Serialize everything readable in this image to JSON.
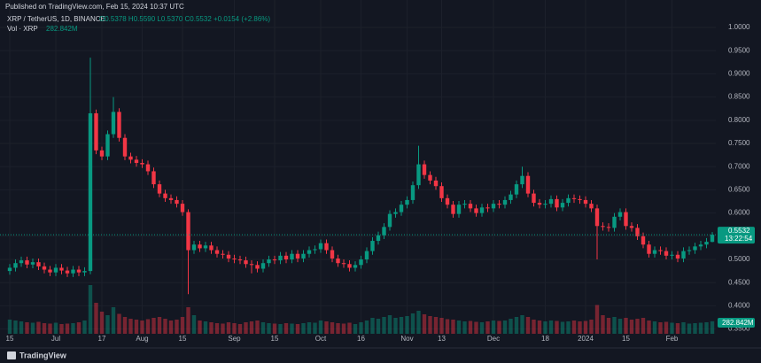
{
  "header": "Published on TradingView.com, Feb 15, 2024 10:37 UTC",
  "footer": "TradingView",
  "chart_data": {
    "type": "candlestick",
    "symbol": "XRP / TetherUS, 1D, BINANCE",
    "ohlc_text": "O0.5378 H0.5590 L0.5370 C0.5532 +0.0154 (+2.86%)",
    "volume_title": "Vol · XRP",
    "volume_text": "282.842M",
    "last_price_label": "0.5532",
    "countdown": "13:22:54",
    "up_color": "#089981",
    "down_color": "#f23645",
    "categories": [
      "15",
      null,
      null,
      null,
      null,
      null,
      null,
      null,
      "Jul",
      null,
      null,
      null,
      null,
      null,
      null,
      null,
      "17",
      null,
      null,
      null,
      null,
      null,
      null,
      "Aug",
      null,
      null,
      null,
      null,
      null,
      null,
      "15",
      null,
      null,
      null,
      null,
      null,
      null,
      null,
      null,
      "Sep",
      null,
      null,
      null,
      null,
      null,
      null,
      "15",
      null,
      null,
      null,
      null,
      null,
      null,
      null,
      "Oct",
      null,
      null,
      null,
      null,
      null,
      null,
      "16",
      null,
      null,
      null,
      null,
      null,
      null,
      null,
      "Nov",
      null,
      null,
      null,
      null,
      null,
      "13",
      null,
      null,
      null,
      null,
      null,
      null,
      null,
      null,
      "Dec",
      null,
      null,
      null,
      null,
      null,
      null,
      null,
      null,
      "18",
      null,
      null,
      null,
      null,
      null,
      null,
      "2024",
      null,
      null,
      null,
      null,
      null,
      null,
      "15",
      null,
      null,
      null,
      null,
      null,
      null,
      null,
      "Feb",
      null,
      null,
      null,
      null,
      null,
      null,
      null
    ],
    "open": [
      0.475,
      0.482,
      0.492,
      0.498,
      0.489,
      0.494,
      0.485,
      0.478,
      0.472,
      0.482,
      0.476,
      0.47,
      0.478,
      0.472,
      0.475,
      0.815,
      0.735,
      0.722,
      0.77,
      0.818,
      0.762,
      0.722,
      0.715,
      0.708,
      0.705,
      0.69,
      0.662,
      0.642,
      0.632,
      0.628,
      0.62,
      0.602,
      0.52,
      0.532,
      0.524,
      0.53,
      0.52,
      0.512,
      0.51,
      0.502,
      0.5,
      0.498,
      0.49,
      0.488,
      0.48,
      0.492,
      0.5,
      0.498,
      0.508,
      0.5,
      0.512,
      0.502,
      0.512,
      0.52,
      0.522,
      0.535,
      0.52,
      0.502,
      0.492,
      0.49,
      0.482,
      0.488,
      0.5,
      0.518,
      0.54,
      0.552,
      0.57,
      0.598,
      0.602,
      0.618,
      0.628,
      0.66,
      0.705,
      0.682,
      0.67,
      0.658,
      0.632,
      0.618,
      0.598,
      0.618,
      0.62,
      0.61,
      0.6,
      0.612,
      0.61,
      0.62,
      0.618,
      0.628,
      0.64,
      0.662,
      0.68,
      0.642,
      0.622,
      0.618,
      0.62,
      0.63,
      0.612,
      0.622,
      0.632,
      0.63,
      0.628,
      0.62,
      0.61,
      0.572,
      0.57,
      0.568,
      0.592,
      0.602,
      0.572,
      0.568,
      0.55,
      0.532,
      0.512,
      0.52,
      0.518,
      0.508,
      0.51,
      0.502,
      0.518,
      0.52,
      0.528,
      0.532,
      0.5378
    ],
    "high": [
      0.49,
      0.5,
      0.506,
      0.506,
      0.502,
      0.502,
      0.493,
      0.486,
      0.49,
      0.49,
      0.484,
      0.486,
      0.486,
      0.483,
      0.935,
      0.823,
      0.743,
      0.778,
      0.85,
      0.826,
      0.77,
      0.73,
      0.723,
      0.716,
      0.713,
      0.698,
      0.67,
      0.65,
      0.64,
      0.636,
      0.628,
      0.608,
      0.54,
      0.54,
      0.538,
      0.538,
      0.528,
      0.52,
      0.518,
      0.51,
      0.508,
      0.506,
      0.498,
      0.496,
      0.5,
      0.508,
      0.508,
      0.516,
      0.516,
      0.52,
      0.52,
      0.52,
      0.528,
      0.53,
      0.543,
      0.543,
      0.528,
      0.51,
      0.5,
      0.498,
      0.496,
      0.508,
      0.526,
      0.548,
      0.56,
      0.578,
      0.606,
      0.61,
      0.626,
      0.636,
      0.668,
      0.745,
      0.713,
      0.69,
      0.678,
      0.666,
      0.64,
      0.626,
      0.626,
      0.628,
      0.628,
      0.618,
      0.62,
      0.62,
      0.628,
      0.628,
      0.636,
      0.648,
      0.67,
      0.7,
      0.688,
      0.65,
      0.63,
      0.628,
      0.638,
      0.638,
      0.63,
      0.64,
      0.64,
      0.638,
      0.636,
      0.628,
      0.618,
      0.58,
      0.578,
      0.6,
      0.61,
      0.61,
      0.58,
      0.576,
      0.558,
      0.54,
      0.528,
      0.528,
      0.526,
      0.518,
      0.518,
      0.526,
      0.528,
      0.536,
      0.54,
      0.546,
      0.559
    ],
    "low": [
      0.467,
      0.474,
      0.484,
      0.481,
      0.481,
      0.477,
      0.47,
      0.464,
      0.464,
      0.468,
      0.462,
      0.462,
      0.464,
      0.464,
      0.468,
      0.727,
      0.714,
      0.714,
      0.762,
      0.754,
      0.714,
      0.707,
      0.7,
      0.697,
      0.682,
      0.654,
      0.634,
      0.624,
      0.62,
      0.612,
      0.594,
      0.425,
      0.512,
      0.516,
      0.516,
      0.512,
      0.504,
      0.502,
      0.494,
      0.492,
      0.49,
      0.482,
      0.47,
      0.472,
      0.472,
      0.484,
      0.49,
      0.49,
      0.492,
      0.492,
      0.494,
      0.494,
      0.504,
      0.512,
      0.514,
      0.512,
      0.494,
      0.484,
      0.482,
      0.474,
      0.474,
      0.48,
      0.492,
      0.51,
      0.532,
      0.544,
      0.562,
      0.59,
      0.594,
      0.61,
      0.62,
      0.652,
      0.674,
      0.662,
      0.65,
      0.624,
      0.61,
      0.59,
      0.59,
      0.61,
      0.602,
      0.592,
      0.592,
      0.602,
      0.602,
      0.61,
      0.61,
      0.62,
      0.632,
      0.654,
      0.634,
      0.614,
      0.61,
      0.61,
      0.612,
      0.604,
      0.604,
      0.614,
      0.622,
      0.62,
      0.612,
      0.602,
      0.5,
      0.562,
      0.56,
      0.56,
      0.584,
      0.564,
      0.56,
      0.542,
      0.524,
      0.504,
      0.504,
      0.51,
      0.5,
      0.5,
      0.494,
      0.494,
      0.51,
      0.512,
      0.52,
      0.524,
      0.537
    ],
    "close": [
      0.482,
      0.492,
      0.498,
      0.489,
      0.494,
      0.485,
      0.478,
      0.472,
      0.482,
      0.476,
      0.47,
      0.478,
      0.472,
      0.475,
      0.815,
      0.735,
      0.722,
      0.77,
      0.818,
      0.762,
      0.722,
      0.715,
      0.708,
      0.705,
      0.69,
      0.662,
      0.642,
      0.632,
      0.628,
      0.62,
      0.602,
      0.52,
      0.532,
      0.524,
      0.53,
      0.52,
      0.512,
      0.51,
      0.502,
      0.5,
      0.498,
      0.49,
      0.488,
      0.48,
      0.492,
      0.5,
      0.498,
      0.508,
      0.5,
      0.512,
      0.502,
      0.512,
      0.52,
      0.522,
      0.535,
      0.52,
      0.502,
      0.492,
      0.49,
      0.482,
      0.488,
      0.5,
      0.518,
      0.54,
      0.552,
      0.57,
      0.598,
      0.602,
      0.618,
      0.628,
      0.66,
      0.705,
      0.682,
      0.67,
      0.658,
      0.632,
      0.618,
      0.598,
      0.618,
      0.62,
      0.61,
      0.6,
      0.612,
      0.61,
      0.62,
      0.618,
      0.628,
      0.64,
      0.662,
      0.68,
      0.642,
      0.622,
      0.618,
      0.62,
      0.63,
      0.612,
      0.622,
      0.632,
      0.63,
      0.628,
      0.62,
      0.61,
      0.572,
      0.57,
      0.568,
      0.592,
      0.602,
      0.572,
      0.568,
      0.55,
      0.532,
      0.512,
      0.52,
      0.518,
      0.508,
      0.51,
      0.502,
      0.518,
      0.52,
      0.528,
      0.532,
      0.538,
      0.5532
    ],
    "volume": [
      320,
      300,
      280,
      260,
      250,
      270,
      240,
      230,
      250,
      220,
      230,
      240,
      260,
      300,
      1100,
      700,
      500,
      420,
      600,
      450,
      380,
      340,
      320,
      300,
      330,
      360,
      380,
      340,
      300,
      320,
      380,
      600,
      420,
      300,
      280,
      260,
      240,
      230,
      260,
      240,
      220,
      260,
      280,
      300,
      260,
      240,
      230,
      220,
      240,
      230,
      220,
      240,
      260,
      250,
      300,
      280,
      260,
      240,
      230,
      250,
      220,
      260,
      300,
      360,
      340,
      380,
      420,
      360,
      380,
      400,
      460,
      520,
      440,
      400,
      380,
      360,
      330,
      320,
      300,
      280,
      290,
      270,
      260,
      280,
      300,
      290,
      300,
      340,
      380,
      420,
      380,
      320,
      300,
      280,
      300,
      290,
      270,
      280,
      300,
      280,
      290,
      320,
      650,
      420,
      360,
      380,
      340,
      360,
      320,
      340,
      360,
      300,
      280,
      260,
      270,
      250,
      240,
      260,
      230,
      240,
      250,
      260,
      282.842
    ],
    "ylim": [
      0.3397,
      1.0592
    ],
    "yticks": [
      {
        "value": 1,
        "label": "1.0000"
      },
      {
        "value": 0.95,
        "label": "0.9500"
      },
      {
        "value": 0.9,
        "label": "0.9000"
      },
      {
        "value": 0.85,
        "label": "0.8500"
      },
      {
        "value": 0.8,
        "label": "0.8000"
      },
      {
        "value": 0.75,
        "label": "0.7500"
      },
      {
        "value": 0.7,
        "label": "0.7000"
      },
      {
        "value": 0.65,
        "label": "0.6500"
      },
      {
        "value": 0.6,
        "label": "0.6000"
      },
      {
        "value": 0.55,
        "label": "0.5500"
      },
      {
        "value": 0.5,
        "label": "0.5000"
      },
      {
        "value": 0.45,
        "label": "0.4500"
      },
      {
        "value": 0.4,
        "label": "0.4000"
      },
      {
        "value": 0.35,
        "label": "0.3500"
      }
    ],
    "grid": true
  }
}
